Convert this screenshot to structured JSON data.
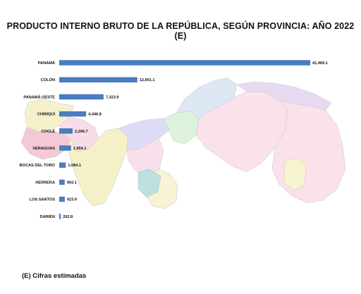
{
  "chart_data": {
    "type": "bar",
    "orientation": "horizontal",
    "title": "PRODUCTO INTERNO BRUTO DE LA REPÚBLICA, SEGÚN PROVINCIA: AÑO 2022 (E)",
    "categories": [
      "PANAMÁ",
      "COLÓN",
      "PANAMÁ OESTE",
      "CHIRIQUÍ",
      "COCLÉ",
      "VERAGUAS",
      "BOCAS DEL TORO",
      "HERRERA",
      "LOS SANTOS",
      "DARIÉN"
    ],
    "values": [
      41469.1,
      12901.1,
      7323.9,
      4446.8,
      2206.7,
      1954.1,
      1084.1,
      903.1,
      923.9,
      262.8
    ],
    "value_labels": [
      "41,469.1",
      "12,901.1",
      "7,323.9",
      "4,446.8",
      "2,206.7",
      "1,954.1",
      "1,084.1",
      "903.1",
      "923.9",
      "262.8"
    ],
    "xlim": [
      0,
      41469.1
    ],
    "grid": false,
    "bar_color": "#4a7cc0"
  },
  "footnote": "(E) Cifras estimadas",
  "background_map": "panama-provinces-map"
}
